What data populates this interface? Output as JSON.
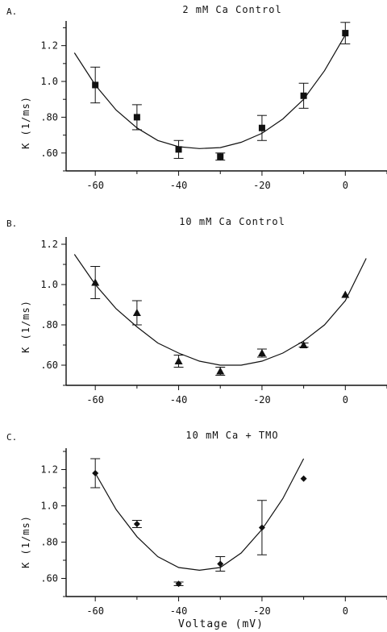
{
  "figure": {
    "xlabel": "Voltage (mV)"
  },
  "chart_data": [
    {
      "type": "scatter",
      "panel_label": "A.",
      "title": "2 mM Ca Control",
      "ylabel": "K (1/ms)",
      "xlim": [
        -67,
        10
      ],
      "ylim": [
        0.5,
        1.32
      ],
      "xticks": [
        -60,
        -40,
        -20,
        0
      ],
      "xtick_labels": [
        "-60",
        "-40",
        "-20",
        "0"
      ],
      "yticks": [
        0.6,
        0.8,
        1.0,
        1.2
      ],
      "ytick_labels": [
        ".60",
        ".80",
        "1.0",
        "1.2"
      ],
      "marker": "square",
      "points": [
        {
          "x": -60,
          "y": 0.98,
          "err": 0.1
        },
        {
          "x": -50,
          "y": 0.8,
          "err": 0.07
        },
        {
          "x": -40,
          "y": 0.62,
          "err": 0.05
        },
        {
          "x": -30,
          "y": 0.58,
          "err": 0.02
        },
        {
          "x": -20,
          "y": 0.74,
          "err": 0.07
        },
        {
          "x": -10,
          "y": 0.92,
          "err": 0.07
        },
        {
          "x": 0,
          "y": 1.27,
          "err": 0.06
        }
      ],
      "fit": {
        "x": [
          -65,
          -60,
          -55,
          -50,
          -45,
          -40,
          -35,
          -30,
          -25,
          -20,
          -15,
          -10,
          -5,
          0
        ],
        "y": [
          1.16,
          0.98,
          0.84,
          0.74,
          0.67,
          0.635,
          0.625,
          0.63,
          0.66,
          0.71,
          0.79,
          0.9,
          1.06,
          1.26
        ]
      }
    },
    {
      "type": "scatter",
      "panel_label": "B.",
      "title": "10 mM Ca Control",
      "ylabel": "K (1/ms)",
      "xlim": [
        -67,
        10
      ],
      "ylim": [
        0.5,
        1.22
      ],
      "xticks": [
        -60,
        -40,
        -20,
        0
      ],
      "xtick_labels": [
        "-60",
        "-40",
        "-20",
        "0"
      ],
      "yticks": [
        0.6,
        0.8,
        1.0,
        1.2
      ],
      "ytick_labels": [
        ".60",
        ".80",
        "1.0",
        "1.2"
      ],
      "marker": "triangle",
      "points": [
        {
          "x": -60,
          "y": 1.01,
          "err": 0.08
        },
        {
          "x": -50,
          "y": 0.86,
          "err": 0.06
        },
        {
          "x": -40,
          "y": 0.62,
          "err": 0.03
        },
        {
          "x": -30,
          "y": 0.57,
          "err": 0.02
        },
        {
          "x": -20,
          "y": 0.66,
          "err": 0.02
        },
        {
          "x": -10,
          "y": 0.7,
          "err": 0.01
        },
        {
          "x": 0,
          "y": 0.95,
          "err": 0
        }
      ],
      "fit": {
        "x": [
          -65,
          -60,
          -55,
          -50,
          -45,
          -40,
          -35,
          -30,
          -25,
          -20,
          -15,
          -10,
          -5,
          0,
          5
        ],
        "y": [
          1.15,
          1.0,
          0.88,
          0.79,
          0.71,
          0.66,
          0.62,
          0.6,
          0.6,
          0.62,
          0.66,
          0.72,
          0.8,
          0.92,
          1.13
        ]
      }
    },
    {
      "type": "scatter",
      "panel_label": "C.",
      "title": "10 mM Ca + TMO",
      "ylabel": "K (1/ms)",
      "xlim": [
        -67,
        10
      ],
      "ylim": [
        0.5,
        1.3
      ],
      "xticks": [
        -60,
        -40,
        -20,
        0
      ],
      "xtick_labels": [
        "-60",
        "-40",
        "-20",
        "0"
      ],
      "yticks": [
        0.6,
        0.8,
        1.0,
        1.2
      ],
      "ytick_labels": [
        ".60",
        ".80",
        "1.0",
        "1.2"
      ],
      "marker": "diamond",
      "points": [
        {
          "x": -60,
          "y": 1.18,
          "err": 0.08
        },
        {
          "x": -50,
          "y": 0.9,
          "err": 0.02
        },
        {
          "x": -40,
          "y": 0.57,
          "err": 0.01
        },
        {
          "x": -30,
          "y": 0.68,
          "err": 0.04
        },
        {
          "x": -20,
          "y": 0.88,
          "err": 0.15
        },
        {
          "x": -10,
          "y": 1.15,
          "err": 0
        }
      ],
      "fit": {
        "x": [
          -60,
          -55,
          -50,
          -45,
          -40,
          -35,
          -30,
          -25,
          -20,
          -15,
          -10
        ],
        "y": [
          1.18,
          0.98,
          0.83,
          0.72,
          0.66,
          0.645,
          0.66,
          0.74,
          0.87,
          1.04,
          1.26
        ]
      }
    }
  ]
}
